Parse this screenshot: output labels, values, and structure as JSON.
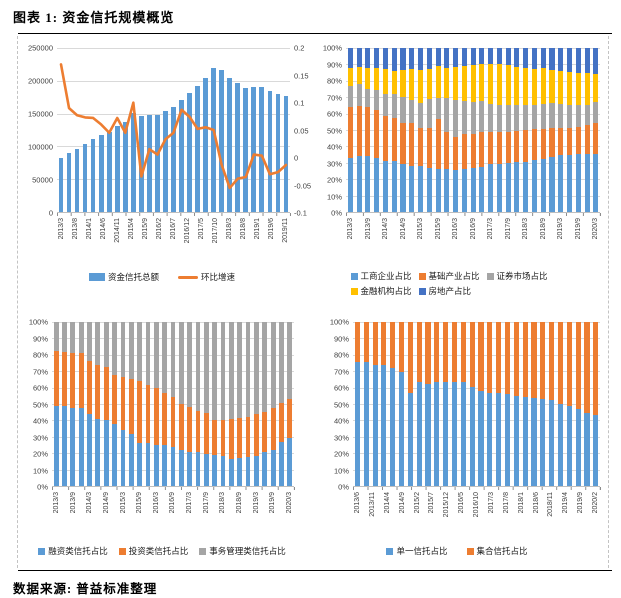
{
  "page": {
    "title": "图表 1: 资金信托规模概览",
    "source": "数据来源: 普益标准整理"
  },
  "palette": {
    "blue": "#5B9BD5",
    "orange": "#ED7D31",
    "gray": "#A5A5A5",
    "yellow": "#FFC000",
    "navy": "#4472C4",
    "gridline": "#D9D9D9",
    "axis_line": "#BFBFBF",
    "tick_text": "#404040"
  },
  "chart_data": [
    {
      "id": "funds-scale",
      "type": "bar",
      "subtype": "bar+line-dual-axis",
      "legend_position": "bottom",
      "left_axis": {
        "ticks": [
          "250000",
          "200000",
          "150000",
          "100000",
          "50000",
          "0"
        ],
        "min": 0,
        "max": 250000
      },
      "right_axis": {
        "ticks": [
          "0.2",
          "0.15",
          "0.1",
          "0.05",
          "0",
          "-0.05",
          "-0.1"
        ],
        "min": -0.1,
        "max": 0.2
      },
      "x_labels": [
        "2013/3",
        "2013/8",
        "2014/1",
        "2014/6",
        "2014/11",
        "2015/4",
        "2015/9",
        "2016/2",
        "2016/7",
        "2016/12",
        "2017/5",
        "2017/10",
        "2018/3",
        "2018/8",
        "2019/1",
        "2019/6",
        "2019/11"
      ],
      "bar_series": {
        "name": "资金信托总额",
        "color": "#5B9BD5",
        "values": [
          82000,
          89400,
          96300,
          103300,
          110600,
          117200,
          122500,
          131400,
          137300,
          151000,
          145700,
          147900,
          148600,
          153500,
          160400,
          170000,
          181000,
          192000,
          204000,
          219000,
          216000,
          204000,
          196000,
          189500,
          190500,
          191000,
          185000,
          180000,
          177500
        ]
      },
      "line_series": {
        "name": "环比增速",
        "color": "#ED7D31",
        "values": [
          0.17,
          0.09,
          0.077,
          0.073,
          0.072,
          0.06,
          0.045,
          0.072,
          0.045,
          0.1,
          -0.035,
          0.015,
          0.005,
          0.033,
          0.045,
          0.087,
          0.074,
          0.052,
          0.055,
          0.05,
          -0.014,
          -0.056,
          -0.039,
          -0.036,
          0.005,
          0.003,
          -0.031,
          -0.027,
          -0.014
        ]
      }
    },
    {
      "id": "usage-structure",
      "type": "bar",
      "subtype": "stacked-100",
      "y_axis": {
        "ticks": [
          "100%",
          "90%",
          "80%",
          "70%",
          "60%",
          "50%",
          "40%",
          "30%",
          "20%",
          "10%",
          "0%"
        ],
        "min": 0,
        "max": 100
      },
      "x_labels": [
        "2013/3",
        "2013/9",
        "2014/3",
        "2014/9",
        "2015/3",
        "2015/9",
        "2016/3",
        "2016/9",
        "2017/3",
        "2017/9",
        "2018/3",
        "2018/9",
        "2019/3",
        "2019/9",
        "2020/3"
      ],
      "series": [
        {
          "name": "工商企业占比",
          "color": "#5B9BD5",
          "values": [
            33,
            34,
            34,
            33,
            31,
            31,
            29.5,
            28,
            28,
            27,
            26.5,
            26,
            25.5,
            26.5,
            27,
            27.5,
            29,
            29.5,
            30,
            30.5,
            30.5,
            31.5,
            32.5,
            33.5,
            34.5,
            35,
            35.5,
            35.5,
            35.5
          ]
        },
        {
          "name": "基础产业占比",
          "color": "#ED7D31",
          "values": [
            31,
            30.5,
            30,
            29.5,
            27.5,
            26.5,
            24.5,
            26,
            23,
            24,
            30.5,
            23,
            20.5,
            21,
            20.5,
            21,
            19.5,
            19,
            19,
            19,
            19.5,
            19,
            18,
            17.5,
            16.5,
            16.5,
            16.5,
            17.5,
            19
          ]
        },
        {
          "name": "证券市场占比",
          "color": "#A5A5A5",
          "values": [
            13,
            13.5,
            11,
            12,
            13.5,
            14.5,
            16,
            14.5,
            15.5,
            18,
            12.5,
            20.5,
            22.5,
            20,
            19.5,
            19.5,
            17.5,
            17,
            16.5,
            16,
            15.5,
            15,
            15.5,
            15.5,
            15,
            14,
            13,
            12.5,
            12.5
          ]
        },
        {
          "name": "金融机构占比",
          "color": "#FFC000",
          "values": [
            11,
            10.5,
            13,
            13.5,
            15.5,
            14,
            16.5,
            18.5,
            20,
            18,
            19.5,
            18.5,
            20,
            21.5,
            22.5,
            22,
            24.5,
            24.5,
            24,
            23,
            22.5,
            22,
            22,
            20,
            20,
            20,
            20,
            19,
            17
          ]
        },
        {
          "name": "房地产占比",
          "color": "#4472C4",
          "values": [
            12,
            11.5,
            12,
            12,
            12.5,
            14,
            13.5,
            13,
            13.5,
            13,
            11,
            12,
            11.5,
            11,
            10.5,
            10,
            9.5,
            10,
            10.5,
            11.5,
            12,
            12.5,
            12,
            13.5,
            14,
            14.5,
            15,
            15.5,
            16
          ]
        }
      ]
    },
    {
      "id": "function-structure",
      "type": "bar",
      "subtype": "stacked-100",
      "y_axis": {
        "ticks": [
          "100%",
          "90%",
          "80%",
          "70%",
          "60%",
          "50%",
          "40%",
          "30%",
          "20%",
          "10%",
          "0%"
        ],
        "min": 0,
        "max": 100
      },
      "x_labels": [
        "2013/3",
        "2013/9",
        "2014/3",
        "2014/9",
        "2015/3",
        "2015/9",
        "2016/3",
        "2016/9",
        "2017/3",
        "2017/9",
        "2018/3",
        "2018/9",
        "2019/3",
        "2019/9",
        "2020/3"
      ],
      "series": [
        {
          "name": "融资类信托占比",
          "color": "#5B9BD5",
          "values": [
            48.5,
            48.5,
            47.5,
            47.5,
            44,
            41,
            40.5,
            38,
            34,
            32,
            26.5,
            26.5,
            25,
            25,
            24,
            22,
            20.5,
            20.5,
            19.5,
            19,
            18.5,
            16.5,
            17,
            17.5,
            18.5,
            20.5,
            22,
            27,
            29
          ]
        },
        {
          "name": "投资类信托占比",
          "color": "#ED7D31",
          "values": [
            34,
            33.5,
            33.5,
            33.5,
            32.5,
            33,
            32,
            30,
            32.5,
            33.5,
            37.5,
            35,
            34.5,
            31.5,
            30,
            28,
            27.5,
            25.5,
            25,
            21.5,
            21.5,
            24.5,
            24.5,
            24.5,
            25.5,
            24.5,
            25.5,
            23.5,
            24
          ]
        },
        {
          "name": "事务管理类信托占比",
          "color": "#A5A5A5",
          "values": [
            17.5,
            18,
            19,
            19,
            23.5,
            26,
            27.5,
            32,
            33.5,
            34.5,
            36,
            38.5,
            40.5,
            43.5,
            46,
            50,
            52,
            54,
            55.5,
            59.5,
            60,
            59,
            58.5,
            58,
            56,
            55,
            52.5,
            49.5,
            47
          ]
        }
      ]
    },
    {
      "id": "organization-structure",
      "type": "bar",
      "subtype": "stacked-100",
      "y_axis": {
        "ticks": [
          "100%",
          "90%",
          "80%",
          "70%",
          "60%",
          "50%",
          "40%",
          "30%",
          "20%",
          "10%",
          "0%"
        ],
        "min": 0,
        "max": 100
      },
      "x_labels": [
        "2013/6",
        "2013/11",
        "2014/4",
        "2014/9",
        "2015/2",
        "2015/7",
        "2015/12",
        "2016/5",
        "2016/10",
        "2017/3",
        "2017/8",
        "2018/1",
        "2018/6",
        "2018/11",
        "2019/4",
        "2019/9",
        "2020/2"
      ],
      "series": [
        {
          "name": "单一信托占比",
          "color": "#5B9BD5",
          "values": [
            75.5,
            75.5,
            73.5,
            73.5,
            72,
            69.5,
            57,
            63.5,
            62.5,
            63.5,
            63.5,
            63.5,
            63.5,
            60.5,
            58,
            57,
            56.5,
            56,
            55,
            54.5,
            53.5,
            53,
            52.5,
            50,
            48.5,
            47,
            44.5,
            43.5
          ]
        },
        {
          "name": "集合信托占比",
          "color": "#ED7D31",
          "values": [
            24.5,
            24.5,
            26.5,
            26.5,
            28,
            30.5,
            43,
            36.5,
            37.5,
            36.5,
            36.5,
            36.5,
            36.5,
            39.5,
            42,
            43,
            43.5,
            44,
            45,
            45.5,
            46.5,
            47,
            47.5,
            50,
            51.5,
            53,
            55.5,
            56.5
          ]
        }
      ]
    }
  ]
}
